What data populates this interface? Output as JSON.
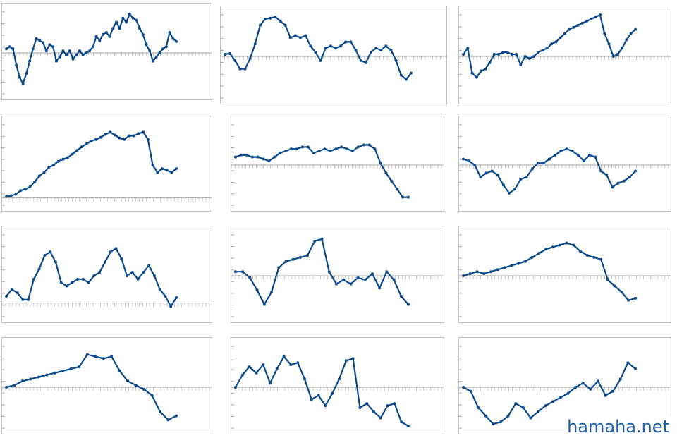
{
  "watermark": "hamaha.net",
  "colors": {
    "line": "#0a4a8c",
    "axis": "#a6a6a6",
    "border": "#bfbfbf"
  },
  "chart_data": [
    {
      "type": "line",
      "title": "",
      "xlabel": "",
      "ylabel": "",
      "grid": false,
      "ylim": [
        -1,
        1
      ],
      "series": [
        {
          "values": [
            0.1,
            0.15,
            0.1,
            -0.3,
            -0.6,
            -0.75,
            -0.5,
            -0.2,
            0.1,
            0.35,
            0.3,
            0.25,
            0.05,
            0.2,
            0.15,
            -0.2,
            -0.1,
            0.05,
            -0.05,
            0.05,
            -0.15,
            -0.05,
            0.05,
            -0.05,
            0,
            0.05,
            0.15,
            0.4,
            0.3,
            0.45,
            0.5,
            0.4,
            0.6,
            0.75,
            0.6,
            0.85,
            0.75,
            0.95,
            0.85,
            0.8,
            0.6,
            0.45,
            0.2,
            0.05,
            -0.2,
            -0.1,
            0,
            0.1,
            0.15,
            0.5,
            0.35,
            0.28
          ]
        }
      ]
    },
    {
      "type": "line",
      "title": "",
      "xlabel": "",
      "ylabel": "",
      "grid": false,
      "ylim": [
        -1,
        1
      ],
      "series": [
        {
          "values": [
            0.05,
            0.07,
            -0.1,
            -0.3,
            -0.3,
            -0.05,
            0.3,
            0.75,
            0.9,
            0.92,
            0.95,
            0.85,
            0.75,
            0.45,
            0.5,
            0.45,
            0.5,
            0.25,
            0.1,
            -0.1,
            0.2,
            0.25,
            0.2,
            0.25,
            0.35,
            0.35,
            0.15,
            -0.1,
            -0.15,
            0.1,
            0.2,
            0.15,
            0.25,
            0.15,
            -0.1,
            -0.45,
            -0.55,
            -0.4
          ]
        }
      ]
    },
    {
      "type": "line",
      "title": "",
      "xlabel": "",
      "ylabel": "",
      "grid": false,
      "ylim": [
        -1,
        1
      ],
      "series": [
        {
          "values": [
            0.05,
            0.2,
            -0.4,
            -0.5,
            -0.35,
            -0.3,
            -0.15,
            0.05,
            0.05,
            0.1,
            0.1,
            0.05,
            0.05,
            -0.2,
            0,
            -0.05,
            0,
            0.1,
            0.15,
            0.2,
            0.3,
            0.35,
            0.45,
            0.55,
            0.65,
            0.7,
            0.75,
            0.8,
            0.85,
            0.9,
            0.95,
            1,
            0.55,
            0.3,
            0,
            0.05,
            0.2,
            0.4,
            0.55,
            0.65
          ]
        }
      ]
    },
    {
      "type": "line",
      "title": "",
      "xlabel": "",
      "ylabel": "",
      "grid": false,
      "ylim": [
        -0.1,
        1
      ],
      "series": [
        {
          "values": [
            0.02,
            0.03,
            0.05,
            0.1,
            0.12,
            0.15,
            0.22,
            0.3,
            0.35,
            0.42,
            0.45,
            0.5,
            0.53,
            0.55,
            0.6,
            0.65,
            0.7,
            0.74,
            0.78,
            0.8,
            0.83,
            0.87,
            0.9,
            0.86,
            0.82,
            0.8,
            0.85,
            0.85,
            0.88,
            0.9,
            0.8,
            0.45,
            0.35,
            0.4,
            0.38,
            0.35,
            0.4
          ]
        }
      ]
    },
    {
      "type": "line",
      "title": "",
      "xlabel": "",
      "ylabel": "",
      "grid": false,
      "ylim": [
        -1,
        1
      ],
      "series": [
        {
          "values": [
            0.2,
            0.25,
            0.25,
            0.2,
            0.2,
            0.15,
            0.1,
            0.2,
            0.3,
            0.35,
            0.4,
            0.4,
            0.45,
            0.45,
            0.3,
            0.35,
            0.4,
            0.35,
            0.4,
            0.45,
            0.4,
            0.35,
            0.45,
            0.5,
            0.5,
            0.4,
            0.05,
            -0.2,
            -0.4,
            -0.6,
            -0.8,
            -0.8
          ]
        }
      ]
    },
    {
      "type": "line",
      "title": "",
      "xlabel": "",
      "ylabel": "",
      "grid": false,
      "ylim": [
        -1,
        1
      ],
      "series": [
        {
          "values": [
            0.15,
            0.1,
            0,
            -0.3,
            -0.2,
            -0.15,
            -0.25,
            -0.5,
            -0.7,
            -0.6,
            -0.35,
            -0.3,
            -0.1,
            0.05,
            0.05,
            0.15,
            0.25,
            0.35,
            0.4,
            0.35,
            0.25,
            0.1,
            0.25,
            0.2,
            -0.15,
            -0.25,
            -0.55,
            -0.45,
            -0.4,
            -0.3,
            -0.15
          ]
        }
      ]
    },
    {
      "type": "line",
      "title": "",
      "xlabel": "",
      "ylabel": "",
      "grid": false,
      "ylim": [
        -0.2,
        1
      ],
      "series": [
        {
          "values": [
            0.1,
            0.2,
            0.15,
            0.05,
            0.05,
            0.35,
            0.5,
            0.7,
            0.75,
            0.6,
            0.3,
            0.25,
            0.3,
            0.35,
            0.35,
            0.3,
            0.4,
            0.45,
            0.6,
            0.75,
            0.8,
            0.65,
            0.4,
            0.45,
            0.35,
            0.45,
            0.55,
            0.4,
            0.2,
            0.1,
            -0.05,
            0.08
          ]
        }
      ]
    },
    {
      "type": "line",
      "title": "",
      "xlabel": "",
      "ylabel": "",
      "grid": false,
      "ylim": [
        -1,
        1
      ],
      "series": [
        {
          "values": [
            0.1,
            0.1,
            -0.05,
            -0.35,
            -0.7,
            -0.4,
            0.2,
            0.35,
            0.4,
            0.45,
            0.5,
            0.85,
            0.9,
            0.1,
            -0.2,
            -0.1,
            -0.2,
            -0.05,
            -0.1,
            0.05,
            -0.3,
            0.1,
            -0.1,
            -0.5,
            -0.7
          ]
        }
      ]
    },
    {
      "type": "line",
      "title": "",
      "xlabel": "",
      "ylabel": "",
      "grid": false,
      "ylim": [
        -1,
        1
      ],
      "series": [
        {
          "values": [
            0,
            0.05,
            0.1,
            0.05,
            0.1,
            0.15,
            0.2,
            0.25,
            0.3,
            0.35,
            0.45,
            0.55,
            0.65,
            0.7,
            0.75,
            0.8,
            0.75,
            0.6,
            0.5,
            0.45,
            0.4,
            -0.1,
            -0.25,
            -0.4,
            -0.6,
            -0.55
          ]
        }
      ]
    },
    {
      "type": "line",
      "title": "",
      "xlabel": "",
      "ylabel": "",
      "grid": false,
      "ylim": [
        -1,
        1
      ],
      "series": [
        {
          "values": [
            0,
            0.05,
            0.15,
            0.2,
            0.25,
            0.3,
            0.35,
            0.4,
            0.45,
            0.5,
            0.8,
            0.75,
            0.7,
            0.75,
            0.4,
            0.15,
            0.05,
            -0.05,
            -0.2,
            -0.6,
            -0.8,
            -0.7
          ]
        }
      ]
    },
    {
      "type": "line",
      "title": "",
      "xlabel": "",
      "ylabel": "",
      "grid": false,
      "ylim": [
        -1,
        1
      ],
      "series": [
        {
          "values": [
            0,
            0.3,
            0.5,
            0.35,
            0.55,
            0.1,
            0.45,
            0.75,
            0.55,
            0.6,
            0.2,
            -0.3,
            -0.2,
            -0.45,
            -0.15,
            0.2,
            0.65,
            0.7,
            -0.5,
            -0.4,
            -0.6,
            -0.75,
            -0.45,
            -0.4,
            -0.85,
            -0.95
          ]
        }
      ]
    },
    {
      "type": "line",
      "title": "",
      "xlabel": "",
      "ylabel": "",
      "grid": false,
      "ylim": [
        -1,
        1
      ],
      "series": [
        {
          "values": [
            0,
            -0.1,
            -0.5,
            -0.7,
            -0.9,
            -0.85,
            -0.7,
            -0.4,
            -0.5,
            -0.75,
            -0.6,
            -0.45,
            -0.35,
            -0.25,
            -0.15,
            0,
            0.1,
            -0.05,
            0.15,
            -0.2,
            -0.1,
            0.2,
            0.6,
            0.45
          ]
        }
      ]
    }
  ]
}
